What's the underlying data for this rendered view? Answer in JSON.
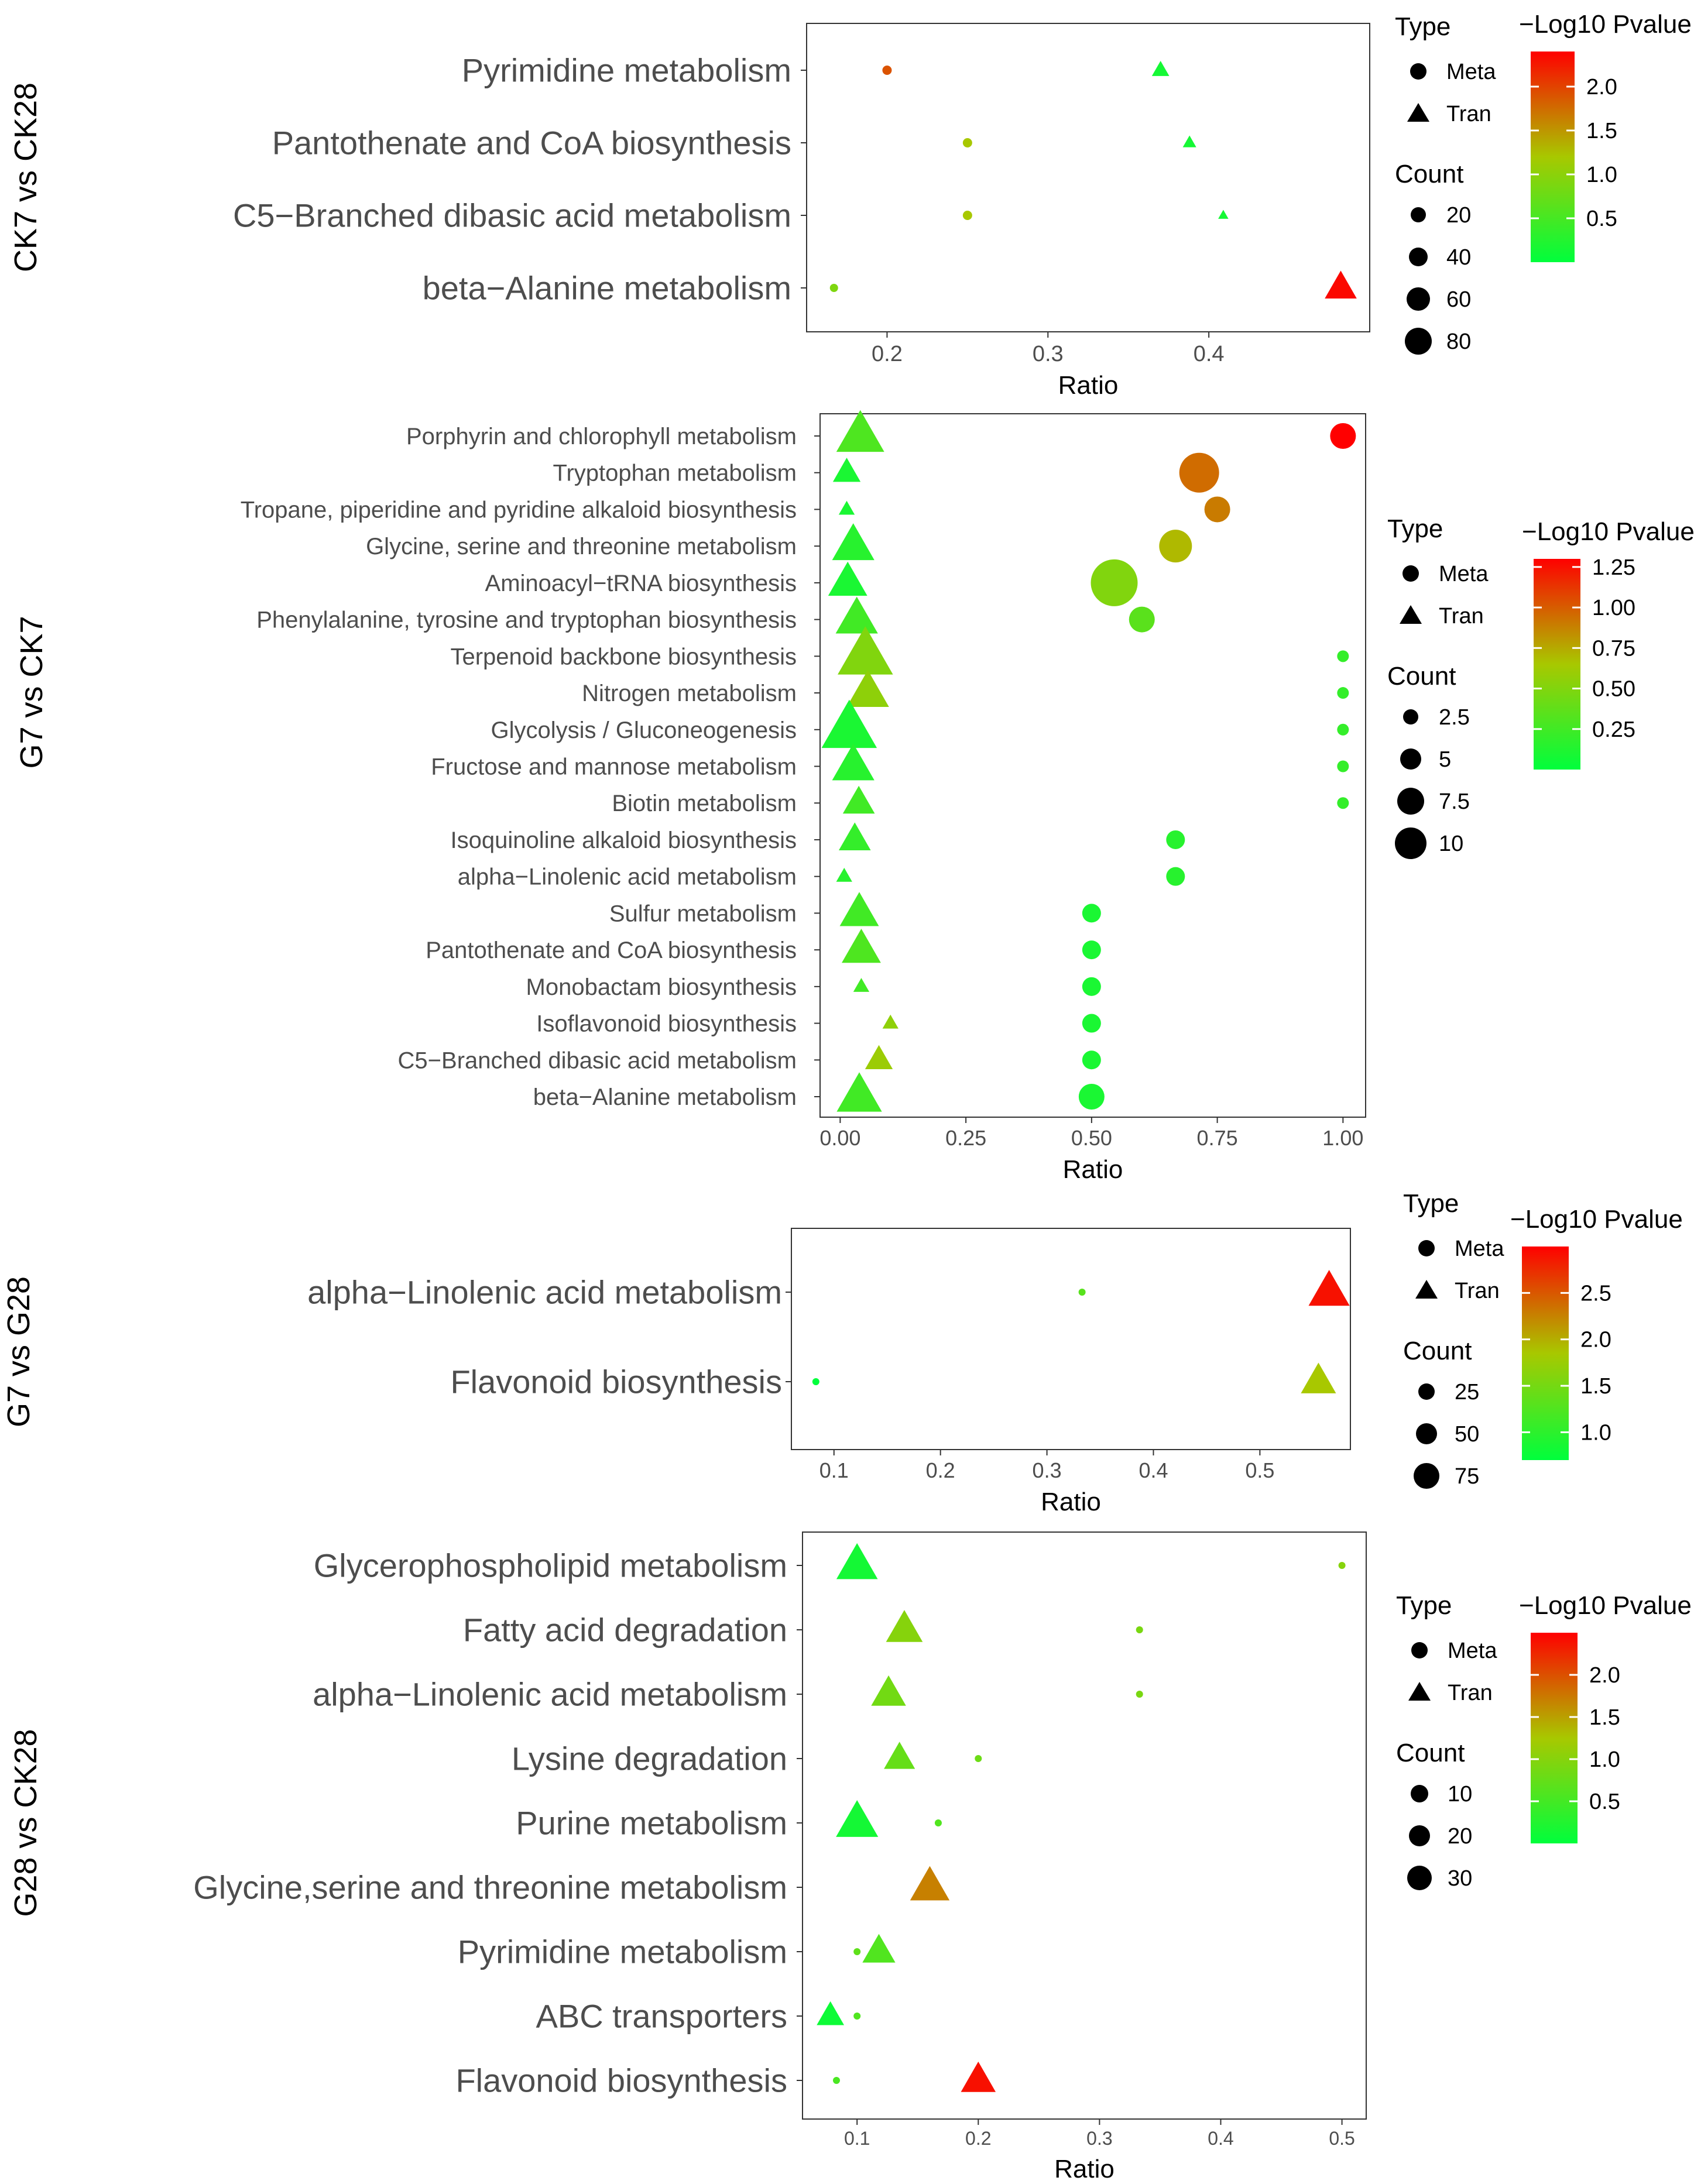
{
  "figure": {
    "type_legend_title": "Type",
    "type_meta": "Meta",
    "type_tran": "Tran",
    "count_legend_title": "Count",
    "colorbar_title": "−Log10 Pvalue",
    "colors": {
      "low": "#00ff3c",
      "mid": "#a8c800",
      "high": "#ff0000",
      "text": "#4d4d4d",
      "axis": "#333333"
    }
  },
  "chart_data": [
    {
      "type": "scatter",
      "id": "p1",
      "title": "CK7 vs CK28",
      "xlabel": "Ratio",
      "xlim": [
        0.15,
        0.5
      ],
      "xticks": [
        0.2,
        0.3,
        0.4
      ],
      "xtick_labels": [
        "0.2",
        "0.3",
        "0.4"
      ],
      "categories": [
        "Pyrimidine metabolism",
        "Pantothenate and CoA biosynthesis",
        "C5−Branched dibasic acid metabolism",
        "beta−Alanine metabolism"
      ],
      "meta": {
        "ratios": [
          0.2,
          0.25,
          0.25,
          0.167
        ],
        "counts": [
          3,
          1,
          1,
          1
        ],
        "pvalues": [
          1.9,
          1.2,
          1.2,
          0.9
        ]
      },
      "tran": {
        "ratios": [
          0.37,
          0.388,
          0.409,
          0.482
        ],
        "counts": [
          40,
          28,
          18,
          85
        ],
        "pvalues": [
          0.15,
          0.15,
          0.15,
          2.35
        ]
      },
      "count_legend": [
        20,
        40,
        60,
        80
      ],
      "color_range": [
        0,
        2.4
      ],
      "colorbar_ticks": [
        0.5,
        1.0,
        1.5,
        2.0
      ],
      "colorbar_tick_labels": [
        "0.5",
        "1.0",
        "1.5",
        "2.0"
      ]
    },
    {
      "type": "scatter",
      "id": "p2",
      "title": "G7 vs CK7",
      "xlabel": "Ratio",
      "xlim": [
        -0.04,
        1.045
      ],
      "xticks": [
        0,
        0.25,
        0.5,
        0.75,
        1.0
      ],
      "xtick_labels": [
        "0.00",
        "0.25",
        "0.50",
        "0.75",
        "1.00"
      ],
      "categories": [
        "Porphyrin and chlorophyll metabolism",
        "Tryptophan metabolism",
        "Tropane, piperidine and pyridine alkaloid biosynthesis",
        "Glycine, serine and threonine metabolism",
        "Aminoacyl−tRNA biosynthesis",
        "Phenylalanine, tyrosine and tryptophan biosynthesis",
        "Terpenoid backbone biosynthesis",
        "Nitrogen metabolism",
        "Glycolysis / Gluconeogenesis",
        "Fructose and mannose metabolism",
        "Biotin metabolism",
        "Isoquinoline alkaloid biosynthesis",
        "alpha−Linolenic acid metabolism",
        "Sulfur metabolism",
        "Pantothenate and CoA biosynthesis",
        "Monobactam biosynthesis",
        "Isoflavonoid biosynthesis",
        "C5−Branched dibasic acid metabolism",
        "beta−Alanine metabolism"
      ],
      "meta": {
        "ratios": [
          1.0,
          0.714,
          0.75,
          0.667,
          0.545,
          0.6,
          1.0,
          1.0,
          1.0,
          1.0,
          1.0,
          0.667,
          0.667,
          0.5,
          0.5,
          0.5,
          0.5,
          0.5,
          0.5
        ],
        "counts": [
          3,
          5,
          3,
          4,
          6,
          3,
          1,
          1,
          1,
          1,
          1,
          2,
          2,
          2,
          2,
          2,
          2,
          2,
          3
        ],
        "pvalues": [
          1.3,
          0.95,
          0.9,
          0.7,
          0.5,
          0.35,
          0.2,
          0.2,
          0.2,
          0.2,
          0.2,
          0.15,
          0.15,
          0.1,
          0.1,
          0.1,
          0.1,
          0.1,
          0.1
        ]
      },
      "tran": {
        "ratios": [
          0.04,
          0.013,
          0.013,
          0.026,
          0.015,
          0.033,
          0.05,
          0.055,
          0.018,
          0.026,
          0.037,
          0.029,
          0.008,
          0.038,
          0.042,
          0.042,
          0.1,
          0.077,
          0.038
        ],
        "counts": [
          9,
          3,
          1,
          7,
          6,
          7,
          12,
          7,
          12,
          7,
          4,
          4,
          1,
          6,
          6,
          1,
          1,
          3,
          8
        ],
        "pvalues": [
          0.3,
          0.1,
          0.1,
          0.15,
          0.1,
          0.25,
          0.5,
          0.55,
          0.1,
          0.15,
          0.25,
          0.2,
          0.15,
          0.25,
          0.3,
          0.25,
          0.55,
          0.6,
          0.25
        ]
      },
      "count_legend": [
        2.5,
        5.0,
        7.5,
        10.0
      ],
      "color_range": [
        0,
        1.3
      ],
      "colorbar_ticks": [
        0.25,
        0.5,
        0.75,
        1.0,
        1.25
      ],
      "colorbar_tick_labels": [
        "0.25",
        "0.50",
        "0.75",
        "1.00",
        "1.25"
      ]
    },
    {
      "type": "scatter",
      "id": "p3",
      "title": "G7 vs G28",
      "xlabel": "Ratio",
      "xlim": [
        0.06,
        0.585
      ],
      "xticks": [
        0.1,
        0.2,
        0.3,
        0.4,
        0.5
      ],
      "xtick_labels": [
        "0.1",
        "0.2",
        "0.3",
        "0.4",
        "0.5"
      ],
      "categories": [
        "alpha−Linolenic acid metabolism",
        "Flavonoid biosynthesis"
      ],
      "meta": {
        "ratios": [
          0.333,
          0.083
        ],
        "counts": [
          1,
          1
        ],
        "pvalues": [
          1.3,
          0.7
        ]
      },
      "tran": {
        "ratios": [
          0.565,
          0.555
        ],
        "counts": [
          45,
          32
        ],
        "pvalues": [
          2.9,
          1.85
        ]
      },
      "count_legend": [
        25,
        50,
        75
      ],
      "color_range": [
        0.7,
        3.0
      ],
      "colorbar_ticks": [
        1.0,
        1.5,
        2.0,
        2.5
      ],
      "colorbar_tick_labels": [
        "1.0",
        "1.5",
        "2.0",
        "2.5"
      ]
    },
    {
      "type": "scatter",
      "id": "p4",
      "title": "G28 vs CK28",
      "xlabel": "Ratio",
      "xlim": [
        0.055,
        0.52
      ],
      "xticks": [
        0.1,
        0.2,
        0.3,
        0.4,
        0.5
      ],
      "xtick_labels": [
        "0.1",
        "0.2",
        "0.3",
        "0.4",
        "0.5"
      ],
      "categories": [
        "Glycerophospholipid metabolism",
        "Fatty acid degradation",
        "alpha−Linolenic acid metabolism",
        "Lysine degradation",
        "Purine metabolism",
        "Glycine,serine and threonine metabolism",
        "Pyrimidine metabolism",
        "ABC transporters",
        "Flavonoid biosynthesis"
      ],
      "meta": {
        "ratios": [
          0.5,
          0.333,
          0.333,
          0.2,
          0.167,
          null,
          0.1,
          0.1,
          0.083
        ],
        "counts": [
          1,
          1,
          1,
          1,
          1,
          null,
          1,
          1,
          1
        ],
        "pvalues": [
          1.0,
          0.9,
          0.9,
          0.8,
          0.6,
          null,
          0.7,
          0.6,
          0.55
        ]
      },
      "tran": {
        "ratios": [
          0.1,
          0.139,
          0.126,
          0.135,
          0.1,
          0.16,
          0.118,
          0.078,
          0.2
        ],
        "counts": [
          27,
          22,
          20,
          16,
          28,
          25,
          18,
          12,
          20
        ],
        "pvalues": [
          0.15,
          1.0,
          0.85,
          0.75,
          0.15,
          1.7,
          0.6,
          0.1,
          2.4
        ]
      },
      "count_legend": [
        10,
        20,
        30
      ],
      "color_range": [
        0,
        2.5
      ],
      "colorbar_ticks": [
        0.5,
        1.0,
        1.5,
        2.0
      ],
      "colorbar_tick_labels": [
        "0.5",
        "1.0",
        "1.5",
        "2.0"
      ]
    }
  ]
}
